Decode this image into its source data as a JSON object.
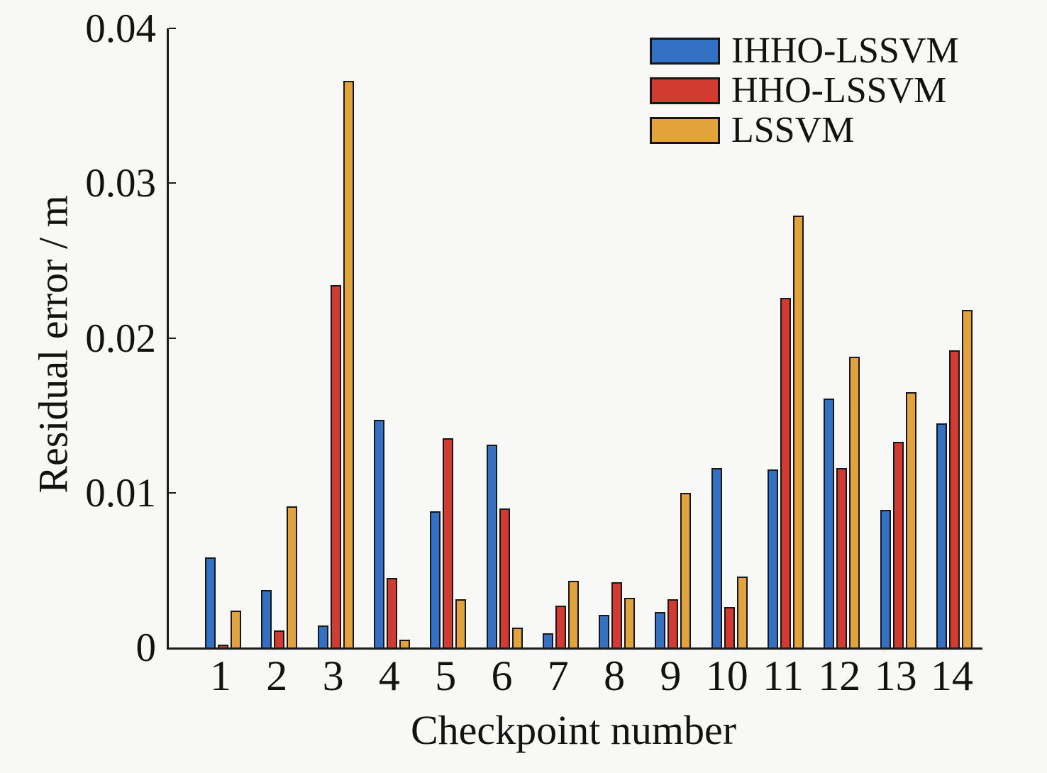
{
  "chart_data": {
    "type": "bar",
    "title": "",
    "xlabel": "Checkpoint number",
    "ylabel": "Residual error / m",
    "ylim": [
      0,
      0.04
    ],
    "yticks": [
      0,
      0.01,
      0.02,
      0.03,
      0.04
    ],
    "ytick_labels": [
      "0",
      "0.01",
      "0.02",
      "0.03",
      "0.04"
    ],
    "categories": [
      "1",
      "2",
      "3",
      "4",
      "5",
      "6",
      "7",
      "8",
      "9",
      "10",
      "11",
      "12",
      "13",
      "14"
    ],
    "series": [
      {
        "name": "IHHO-LSSVM",
        "color": "#3471c4",
        "values": [
          0.0058,
          0.0037,
          0.0014,
          0.0147,
          0.0088,
          0.0131,
          0.0009,
          0.0021,
          0.0023,
          0.0116,
          0.0115,
          0.0161,
          0.0089,
          0.0145
        ]
      },
      {
        "name": "HHO-LSSVM",
        "color": "#d23b2f",
        "values": [
          0.0002,
          0.0011,
          0.0234,
          0.0045,
          0.0135,
          0.009,
          0.0027,
          0.0042,
          0.0031,
          0.0026,
          0.0226,
          0.0116,
          0.0133,
          0.0192
        ]
      },
      {
        "name": "LSSVM",
        "color": "#e2a33a",
        "values": [
          0.0024,
          0.0091,
          0.0366,
          0.0005,
          0.0031,
          0.0013,
          0.0043,
          0.0032,
          0.01,
          0.0046,
          0.0279,
          0.0188,
          0.0165,
          0.0218
        ]
      }
    ],
    "legend_position": "top-right",
    "grid": false,
    "bar_edge_color": "#17171a",
    "background_color": "#f8f8f6"
  }
}
